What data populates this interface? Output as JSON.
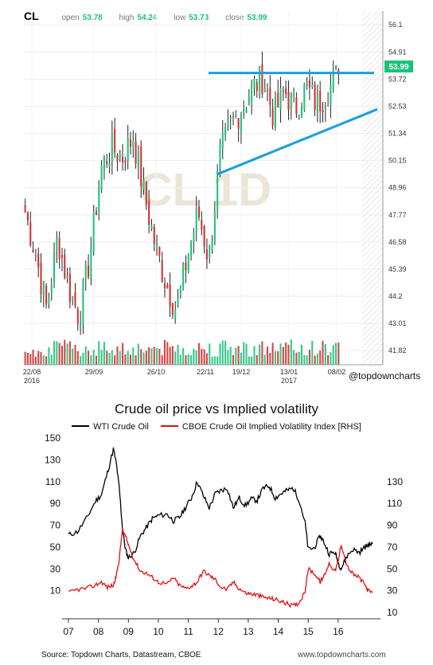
{
  "ticker": {
    "symbol": "CL",
    "open_label": "open",
    "open": "53.78",
    "high_label": "high",
    "high": "54.24",
    "low_label": "low",
    "low": "53.73",
    "close_label": "close",
    "close": "53.99",
    "price_tag": "53.99",
    "watermark": "CL 1D",
    "handle": "@topdowncharts"
  },
  "bottom": {
    "title": "Crude oil price vs Implied volatility",
    "legend_wti": "WTI Crude Oil",
    "legend_vol": "CBOE Crude Oil Implied Volatility Index [RHS]",
    "source": "Source: Topdown Charts, Datastream, CBOE",
    "site": "www.topdowncharts.com"
  },
  "chart_data": [
    {
      "type": "candlestick",
      "title": "CL",
      "x_tick_labels": [
        "22/08",
        "29/09",
        "26/10",
        "22/11",
        "19/12",
        "13/01",
        "08/02"
      ],
      "x_year_labels": [
        "2016",
        "2017"
      ],
      "y_ticks": [
        "56.1",
        "54.91",
        "53.72",
        "52.53",
        "51.34",
        "50.15",
        "48.96",
        "47.77",
        "46.58",
        "45.39",
        "44.2",
        "43.01",
        "41.82"
      ],
      "ylim": [
        41.2,
        56.7
      ],
      "annotations": [
        "resistance line at 53.99",
        "rising support trendline from 49.6 to 52.4"
      ],
      "close_path": [
        {
          "x": "22/08",
          "y": 47.9
        },
        {
          "x": "",
          "y": 46.0
        },
        {
          "x": "",
          "y": 43.6
        },
        {
          "x": "",
          "y": 46.8
        },
        {
          "x": "",
          "y": 44.6
        },
        {
          "x": "",
          "y": 43.3
        },
        {
          "x": "29/09",
          "y": 46.0
        },
        {
          "x": "",
          "y": 49.8
        },
        {
          "x": "",
          "y": 50.7
        },
        {
          "x": "",
          "y": 50.3
        },
        {
          "x": "",
          "y": 51.2
        },
        {
          "x": "26/10",
          "y": 48.7
        },
        {
          "x": "",
          "y": 46.5
        },
        {
          "x": "",
          "y": 44.8
        },
        {
          "x": "",
          "y": 43.6
        },
        {
          "x": "",
          "y": 45.9
        },
        {
          "x": "22/11",
          "y": 47.9
        },
        {
          "x": "",
          "y": 45.8
        },
        {
          "x": "",
          "y": 50.3
        },
        {
          "x": "",
          "y": 51.7
        },
        {
          "x": "19/12",
          "y": 52.4
        },
        {
          "x": "",
          "y": 53.3
        },
        {
          "x": "",
          "y": 53.8
        },
        {
          "x": "13/01",
          "y": 52.1
        },
        {
          "x": "",
          "y": 53.2
        },
        {
          "x": "",
          "y": 52.4
        },
        {
          "x": "",
          "y": 53.4
        },
        {
          "x": "08/02",
          "y": 52.6
        },
        {
          "x": "",
          "y": 53.2
        },
        {
          "x": "",
          "y": 53.99
        }
      ]
    },
    {
      "type": "line",
      "title": "Crude oil price vs Implied volatility",
      "x_ticks": [
        "07",
        "08",
        "09",
        "10",
        "11",
        "12",
        "13",
        "14",
        "15",
        "16"
      ],
      "y_left_ticks": [
        150,
        130,
        110,
        90,
        70,
        50,
        30,
        10
      ],
      "y_left_lim": [
        -10,
        150
      ],
      "y_right_ticks": [
        130,
        110,
        90,
        70,
        50,
        30,
        10
      ],
      "y_right_lim": [
        10,
        170
      ],
      "series": [
        {
          "name": "WTI Crude Oil",
          "color": "#000000",
          "axis": "left",
          "points": [
            [
              2007.0,
              61
            ],
            [
              2007.3,
              64
            ],
            [
              2007.6,
              76
            ],
            [
              2007.9,
              92
            ],
            [
              2008.1,
              98
            ],
            [
              2008.3,
              118
            ],
            [
              2008.5,
              140
            ],
            [
              2008.6,
              126
            ],
            [
              2008.7,
              103
            ],
            [
              2008.8,
              68
            ],
            [
              2008.9,
              48
            ],
            [
              2009.0,
              40
            ],
            [
              2009.2,
              45
            ],
            [
              2009.4,
              60
            ],
            [
              2009.6,
              68
            ],
            [
              2009.8,
              76
            ],
            [
              2010.0,
              79
            ],
            [
              2010.3,
              80
            ],
            [
              2010.5,
              74
            ],
            [
              2010.7,
              77
            ],
            [
              2010.9,
              86
            ],
            [
              2011.1,
              95
            ],
            [
              2011.3,
              110
            ],
            [
              2011.5,
              97
            ],
            [
              2011.7,
              86
            ],
            [
              2011.9,
              99
            ],
            [
              2012.1,
              102
            ],
            [
              2012.3,
              104
            ],
            [
              2012.5,
              86
            ],
            [
              2012.7,
              95
            ],
            [
              2012.9,
              88
            ],
            [
              2013.1,
              94
            ],
            [
              2013.3,
              93
            ],
            [
              2013.5,
              104
            ],
            [
              2013.7,
              106
            ],
            [
              2013.9,
              95
            ],
            [
              2014.1,
              99
            ],
            [
              2014.3,
              102
            ],
            [
              2014.5,
              104
            ],
            [
              2014.7,
              93
            ],
            [
              2014.9,
              72
            ],
            [
              2015.0,
              48
            ],
            [
              2015.2,
              49
            ],
            [
              2015.4,
              60
            ],
            [
              2015.5,
              56
            ],
            [
              2015.7,
              44
            ],
            [
              2015.9,
              45
            ],
            [
              2016.0,
              36
            ],
            [
              2016.1,
              30
            ],
            [
              2016.3,
              42
            ],
            [
              2016.5,
              48
            ],
            [
              2016.7,
              45
            ],
            [
              2016.9,
              50
            ],
            [
              2017.0,
              52
            ],
            [
              2017.15,
              53
            ]
          ]
        },
        {
          "name": "CBOE Crude Oil Implied Volatility Index [RHS]",
          "color": "#e01010",
          "axis": "right",
          "points": [
            [
              2007.0,
              28
            ],
            [
              2007.3,
              31
            ],
            [
              2007.6,
              32
            ],
            [
              2007.9,
              35
            ],
            [
              2008.1,
              38
            ],
            [
              2008.3,
              33
            ],
            [
              2008.5,
              35
            ],
            [
              2008.6,
              44
            ],
            [
              2008.7,
              60
            ],
            [
              2008.8,
              86
            ],
            [
              2008.9,
              80
            ],
            [
              2009.0,
              72
            ],
            [
              2009.2,
              58
            ],
            [
              2009.4,
              48
            ],
            [
              2009.6,
              46
            ],
            [
              2009.8,
              42
            ],
            [
              2010.0,
              38
            ],
            [
              2010.3,
              36
            ],
            [
              2010.5,
              42
            ],
            [
              2010.7,
              35
            ],
            [
              2010.9,
              32
            ],
            [
              2011.1,
              34
            ],
            [
              2011.3,
              38
            ],
            [
              2011.5,
              48
            ],
            [
              2011.7,
              44
            ],
            [
              2011.9,
              40
            ],
            [
              2012.1,
              33
            ],
            [
              2012.3,
              31
            ],
            [
              2012.5,
              38
            ],
            [
              2012.7,
              32
            ],
            [
              2012.9,
              28
            ],
            [
              2013.1,
              27
            ],
            [
              2013.3,
              26
            ],
            [
              2013.5,
              24
            ],
            [
              2013.7,
              23
            ],
            [
              2013.9,
              22
            ],
            [
              2014.1,
              20
            ],
            [
              2014.3,
              18
            ],
            [
              2014.5,
              16
            ],
            [
              2014.7,
              19
            ],
            [
              2014.9,
              30
            ],
            [
              2015.0,
              50
            ],
            [
              2015.2,
              46
            ],
            [
              2015.4,
              38
            ],
            [
              2015.5,
              42
            ],
            [
              2015.7,
              55
            ],
            [
              2015.9,
              48
            ],
            [
              2016.0,
              56
            ],
            [
              2016.1,
              73
            ],
            [
              2016.3,
              52
            ],
            [
              2016.5,
              45
            ],
            [
              2016.7,
              42
            ],
            [
              2016.9,
              35
            ],
            [
              2017.0,
              30
            ],
            [
              2017.15,
              28
            ]
          ]
        }
      ]
    }
  ]
}
